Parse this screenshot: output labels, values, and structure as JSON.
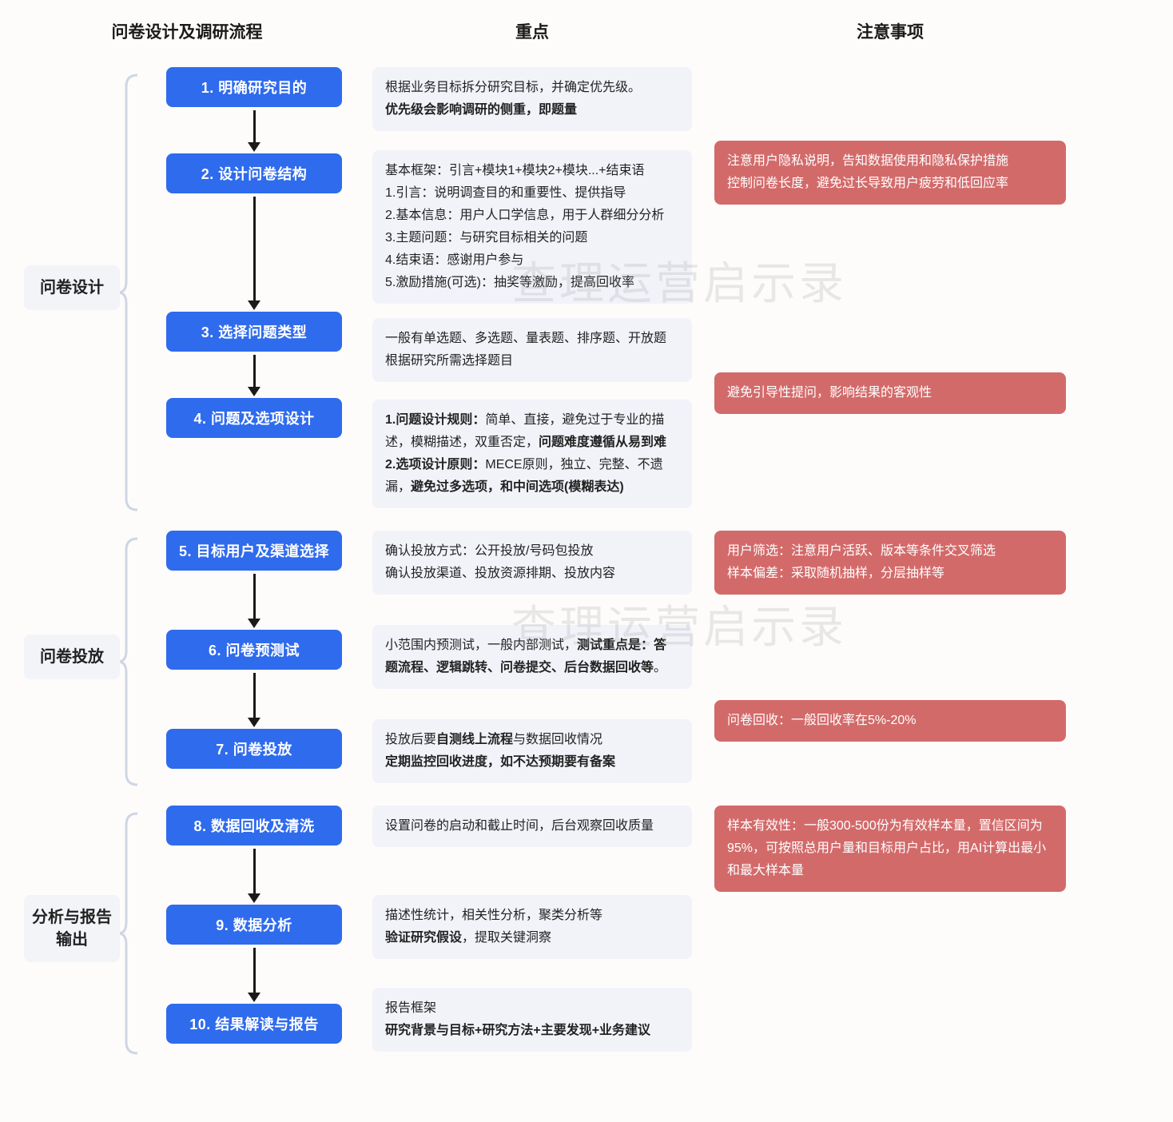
{
  "colors": {
    "step_node_bg": "#2f6bed",
    "step_node_text": "#ffffff",
    "key_box_bg": "#f1f3f9",
    "key_box_text": "#222222",
    "note_box_bg": "#d36a6a",
    "note_box_text": "#ffffff",
    "phase_label_bg": "#f2f4f8",
    "arrow_color": "#1a1a1a",
    "bracket_color": "#cfd6e4",
    "watermark_color": "rgba(160,160,160,0.22)",
    "page_bg": "#fdfcfb"
  },
  "headers": {
    "col1": "问卷设计及调研流程",
    "col2": "重点",
    "col3": "注意事项"
  },
  "watermark_text": "查理运营启示录",
  "phases": [
    {
      "label": "问卷设计",
      "steps": [
        {
          "title": "1. 明确研究目的",
          "key_lines": [
            {
              "t": "根据业务目标拆分研究目标，并确定优先级。",
              "b": false
            },
            {
              "t": "优先级会影响调研的侧重，即题量",
              "b": true
            }
          ],
          "arrow_h": 40,
          "key_top": 0,
          "note_lines": null
        },
        {
          "title": "2. 设计问卷结构",
          "key_lines": [
            {
              "t": "基本框架：引言+模块1+模块2+模块...+结束语",
              "b": false
            },
            {
              "t": "1.引言：说明调查目的和重要性、提供指导",
              "b": false
            },
            {
              "t": "2.基本信息：用户人口学信息，用于人群细分分析",
              "b": false
            },
            {
              "t": "3.主题问题：与研究目标相关的问题",
              "b": false
            },
            {
              "t": "4.结束语：感谢用户参与",
              "b": false
            },
            {
              "t": "5.激励措施(可选)：抽奖等激励，提高回收率",
              "b": false
            }
          ],
          "arrow_h": 130,
          "key_top": 0,
          "note_lines": [
            "注意用户隐私说明，告知数据使用和隐私保护措施",
            "控制问卷长度，避免过长导致用户疲劳和低回应率"
          ]
        },
        {
          "title": "3. 选择问题类型",
          "key_lines": [
            {
              "t": "一般有单选题、多选题、量表题、排序题、开放题",
              "b": false
            },
            {
              "t": "根据研究所需选择题目",
              "b": false
            }
          ],
          "arrow_h": 40,
          "key_top": 0,
          "note_lines": null
        },
        {
          "title": "4. 问题及选项设计",
          "key_lines": [
            {
              "t": "1.问题设计规则：",
              "b": true,
              "inline_after": "简单、直接，避免过于专业的描述，模糊描述，双重否定，"
            },
            {
              "t": "问题难度遵循从易到难",
              "b": true
            },
            {
              "t": "2.选项设计原则：",
              "b": true,
              "inline_after": "MECE原则，独立、完整、不遗漏，"
            },
            {
              "t": "避免过多选项，和中间选项(模糊表达)",
              "b": true
            }
          ],
          "arrow_h": 0,
          "key_top": 0,
          "note_lines": [
            "避免引导性提问，影响结果的客观性"
          ],
          "key_custom": true
        }
      ]
    },
    {
      "label": "问卷投放",
      "steps": [
        {
          "title": "5. 目标用户及渠道选择",
          "key_lines": [
            {
              "t": "确认投放方式：公开投放/号码包投放",
              "b": false
            },
            {
              "t": "确认投放渠道、投放资源排期、投放内容",
              "b": false
            }
          ],
          "arrow_h": 56,
          "key_top": 0,
          "note_lines": [
            "用户筛选：注意用户活跃、版本等条件交叉筛选",
            "样本偏差：采取随机抽样，分层抽样等"
          ]
        },
        {
          "title": "6. 问卷预测试",
          "key_lines_custom": "pretest",
          "arrow_h": 56,
          "key_top": 0,
          "note_lines": null
        },
        {
          "title": "7. 问卷投放",
          "key_lines_custom": "launch",
          "arrow_h": 0,
          "key_top": 0,
          "note_lines": [
            "问卷回收：一般回收率在5%-20%"
          ]
        }
      ]
    },
    {
      "label": "分析与报告输出",
      "steps": [
        {
          "title": "8. 数据回收及清洗",
          "key_lines": [
            {
              "t": "设置问卷的启动和截止时间，后台观察回收质量",
              "b": false
            }
          ],
          "arrow_h": 56,
          "key_top": 0,
          "note_lines": [
            "样本有效性：一般300-500份为有效样本量，置信区间为95%，可按照总用户量和目标用户占比，用AI计算出最小和最大样本量"
          ]
        },
        {
          "title": "9. 数据分析",
          "key_lines_custom": "analysis",
          "arrow_h": 56,
          "key_top": 0,
          "note_lines": null
        },
        {
          "title": "10. 结果解读与报告",
          "key_lines_custom": "report",
          "arrow_h": 0,
          "key_top": 0,
          "note_lines": null
        }
      ]
    }
  ],
  "custom_key": {
    "pretest": {
      "prefix": "小范围内预测试，一般内部测试，",
      "bold": "测试重点是：答题流程、逻辑跳转、问卷提交、后台数据回收等",
      "suffix": "。"
    },
    "launch": {
      "l1_pre": "投放后要",
      "l1_bold": "自测线上流程",
      "l1_post": "与数据回收情况",
      "l2_bold": "定期监控回收进度，如不达预期要有备案"
    },
    "analysis": {
      "l1": "描述性统计，相关性分析，聚类分析等",
      "l2_bold": "验证研究假设",
      "l2_post": "，提取关键洞察"
    },
    "report": {
      "l1": "报告框架",
      "l2_bold": "研究背景与目标+研究方法+主要发现+业务建议"
    }
  }
}
